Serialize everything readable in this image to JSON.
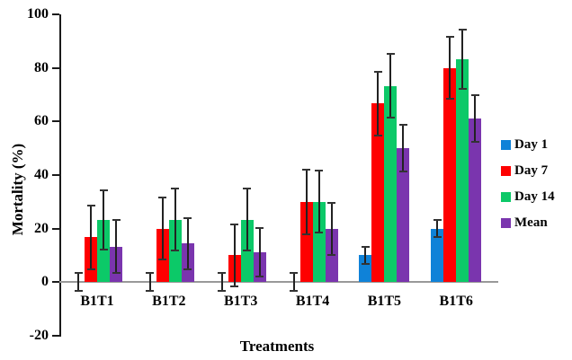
{
  "figure": {
    "background": "#ffffff",
    "axis_color": "#1a1a1a",
    "zero_line_color": "#999999",
    "error_bar_color": "#222222"
  },
  "chart_data": {
    "type": "bar",
    "title": "",
    "xlabel": "Treatments",
    "ylabel": "Mortality (%)",
    "ylim": [
      -20,
      100
    ],
    "yticks": [
      100,
      80,
      60,
      40,
      20,
      0,
      -20
    ],
    "grid": false,
    "legend_position": "right",
    "error_bars": true,
    "categories": [
      "B1T1",
      "B1T2",
      "B1T3",
      "B1T4",
      "B1T5",
      "B1T6"
    ],
    "series": [
      {
        "name": "Day 1",
        "color": "#0f82d8",
        "values": [
          0,
          0,
          0,
          0,
          10,
          20
        ],
        "errors": [
          3.3,
          3.3,
          3.3,
          3.3,
          3.3,
          3.3
        ]
      },
      {
        "name": "Day 7",
        "color": "#fe0000",
        "values": [
          16.7,
          20,
          10,
          30,
          66.7,
          80
        ],
        "errors": [
          12,
          11.5,
          11.5,
          12,
          12,
          11.5
        ]
      },
      {
        "name": "Day 14",
        "color": "#0cc968",
        "values": [
          23.3,
          23.3,
          23.3,
          30,
          73.3,
          83.3
        ],
        "errors": [
          11,
          11.5,
          11.5,
          11.5,
          12,
          11
        ]
      },
      {
        "name": "Mean",
        "color": "#7a35ae",
        "values": [
          13.3,
          14.4,
          11.1,
          20,
          50,
          61.1
        ],
        "errors": [
          10,
          9.5,
          9,
          9.7,
          8.8,
          8.8
        ]
      }
    ]
  }
}
